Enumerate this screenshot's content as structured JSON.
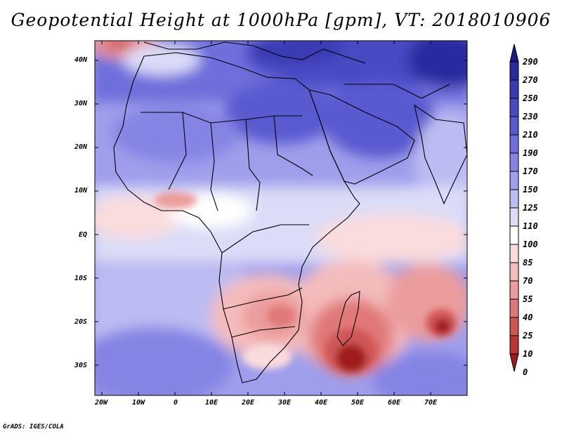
{
  "title": "Geopotential Height at 1000hPa [gpm], VT: 2018010906",
  "credit": "GrADS: IGES/COLA",
  "map": {
    "lon_labels": [
      "20W",
      "10W",
      "0",
      "10E",
      "20E",
      "30E",
      "40E",
      "50E",
      "60E",
      "70E"
    ],
    "lat_labels": [
      "40N",
      "30N",
      "20N",
      "10N",
      "EQ",
      "10S",
      "20S",
      "30S"
    ]
  },
  "colorbar": {
    "levels": [
      "290",
      "270",
      "250",
      "230",
      "210",
      "190",
      "170",
      "150",
      "125",
      "110",
      "100",
      "85",
      "70",
      "55",
      "40",
      "25",
      "10",
      "0"
    ],
    "colors": [
      "#1a1a8a",
      "#2a2aa0",
      "#3a3ab4",
      "#4a4ac4",
      "#5a5ad0",
      "#6e6edc",
      "#8484e4",
      "#9e9eec",
      "#bcbcf2",
      "#dcdcf8",
      "#ffffff",
      "#fadcdc",
      "#f4bcbc",
      "#ec9c9c",
      "#e07878",
      "#d05656",
      "#bc3636",
      "#a01c1c"
    ]
  },
  "palette": {
    "outline": "#000000",
    "coast": "#000000"
  }
}
